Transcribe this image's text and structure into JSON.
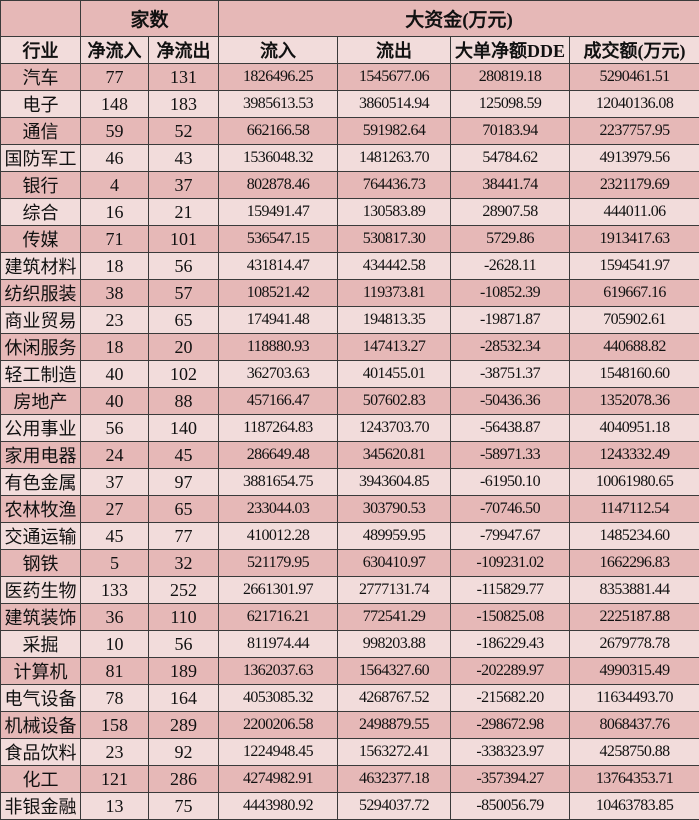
{
  "header": {
    "group_counts": "家数",
    "group_big_money": "大资金(万元)",
    "columns": [
      "行业",
      "净流入",
      "净流出",
      "流入",
      "流出",
      "大单净额DDE",
      "成交额(万元)"
    ]
  },
  "colors": {
    "row_dark": "#e6b8b7",
    "row_light": "#f2dcdb",
    "border": "#3a3a3a"
  },
  "rows": [
    [
      "汽车",
      "77",
      "131",
      "1826496.25",
      "1545677.06",
      "280819.18",
      "5290461.51"
    ],
    [
      "电子",
      "148",
      "183",
      "3985613.53",
      "3860514.94",
      "125098.59",
      "12040136.08"
    ],
    [
      "通信",
      "59",
      "52",
      "662166.58",
      "591982.64",
      "70183.94",
      "2237757.95"
    ],
    [
      "国防军工",
      "46",
      "43",
      "1536048.32",
      "1481263.70",
      "54784.62",
      "4913979.56"
    ],
    [
      "银行",
      "4",
      "37",
      "802878.46",
      "764436.73",
      "38441.74",
      "2321179.69"
    ],
    [
      "综合",
      "16",
      "21",
      "159491.47",
      "130583.89",
      "28907.58",
      "444011.06"
    ],
    [
      "传媒",
      "71",
      "101",
      "536547.15",
      "530817.30",
      "5729.86",
      "1913417.63"
    ],
    [
      "建筑材料",
      "18",
      "56",
      "431814.47",
      "434442.58",
      "-2628.11",
      "1594541.97"
    ],
    [
      "纺织服装",
      "38",
      "57",
      "108521.42",
      "119373.81",
      "-10852.39",
      "619667.16"
    ],
    [
      "商业贸易",
      "23",
      "65",
      "174941.48",
      "194813.35",
      "-19871.87",
      "705902.61"
    ],
    [
      "休闲服务",
      "18",
      "20",
      "118880.93",
      "147413.27",
      "-28532.34",
      "440688.82"
    ],
    [
      "轻工制造",
      "40",
      "102",
      "362703.63",
      "401455.01",
      "-38751.37",
      "1548160.60"
    ],
    [
      "房地产",
      "40",
      "88",
      "457166.47",
      "507602.83",
      "-50436.36",
      "1352078.36"
    ],
    [
      "公用事业",
      "56",
      "140",
      "1187264.83",
      "1243703.70",
      "-56438.87",
      "4040951.18"
    ],
    [
      "家用电器",
      "24",
      "45",
      "286649.48",
      "345620.81",
      "-58971.33",
      "1243332.49"
    ],
    [
      "有色金属",
      "37",
      "97",
      "3881654.75",
      "3943604.85",
      "-61950.10",
      "10061980.65"
    ],
    [
      "农林牧渔",
      "27",
      "65",
      "233044.03",
      "303790.53",
      "-70746.50",
      "1147112.54"
    ],
    [
      "交通运输",
      "45",
      "77",
      "410012.28",
      "489959.95",
      "-79947.67",
      "1485234.60"
    ],
    [
      "钢铁",
      "5",
      "32",
      "521179.95",
      "630410.97",
      "-109231.02",
      "1662296.83"
    ],
    [
      "医药生物",
      "133",
      "252",
      "2661301.97",
      "2777131.74",
      "-115829.77",
      "8353881.44"
    ],
    [
      "建筑装饰",
      "36",
      "110",
      "621716.21",
      "772541.29",
      "-150825.08",
      "2225187.88"
    ],
    [
      "采掘",
      "10",
      "56",
      "811974.44",
      "998203.88",
      "-186229.43",
      "2679778.78"
    ],
    [
      "计算机",
      "81",
      "189",
      "1362037.63",
      "1564327.60",
      "-202289.97",
      "4990315.49"
    ],
    [
      "电气设备",
      "78",
      "164",
      "4053085.32",
      "4268767.52",
      "-215682.20",
      "11634493.70"
    ],
    [
      "机械设备",
      "158",
      "289",
      "2200206.58",
      "2498879.55",
      "-298672.98",
      "8068437.76"
    ],
    [
      "食品饮料",
      "23",
      "92",
      "1224948.45",
      "1563272.41",
      "-338323.97",
      "4258750.88"
    ],
    [
      "化工",
      "121",
      "286",
      "4274982.91",
      "4632377.18",
      "-357394.27",
      "13764353.71"
    ],
    [
      "非银金融",
      "13",
      "75",
      "4443980.92",
      "5294037.72",
      "-850056.79",
      "10463783.85"
    ]
  ]
}
